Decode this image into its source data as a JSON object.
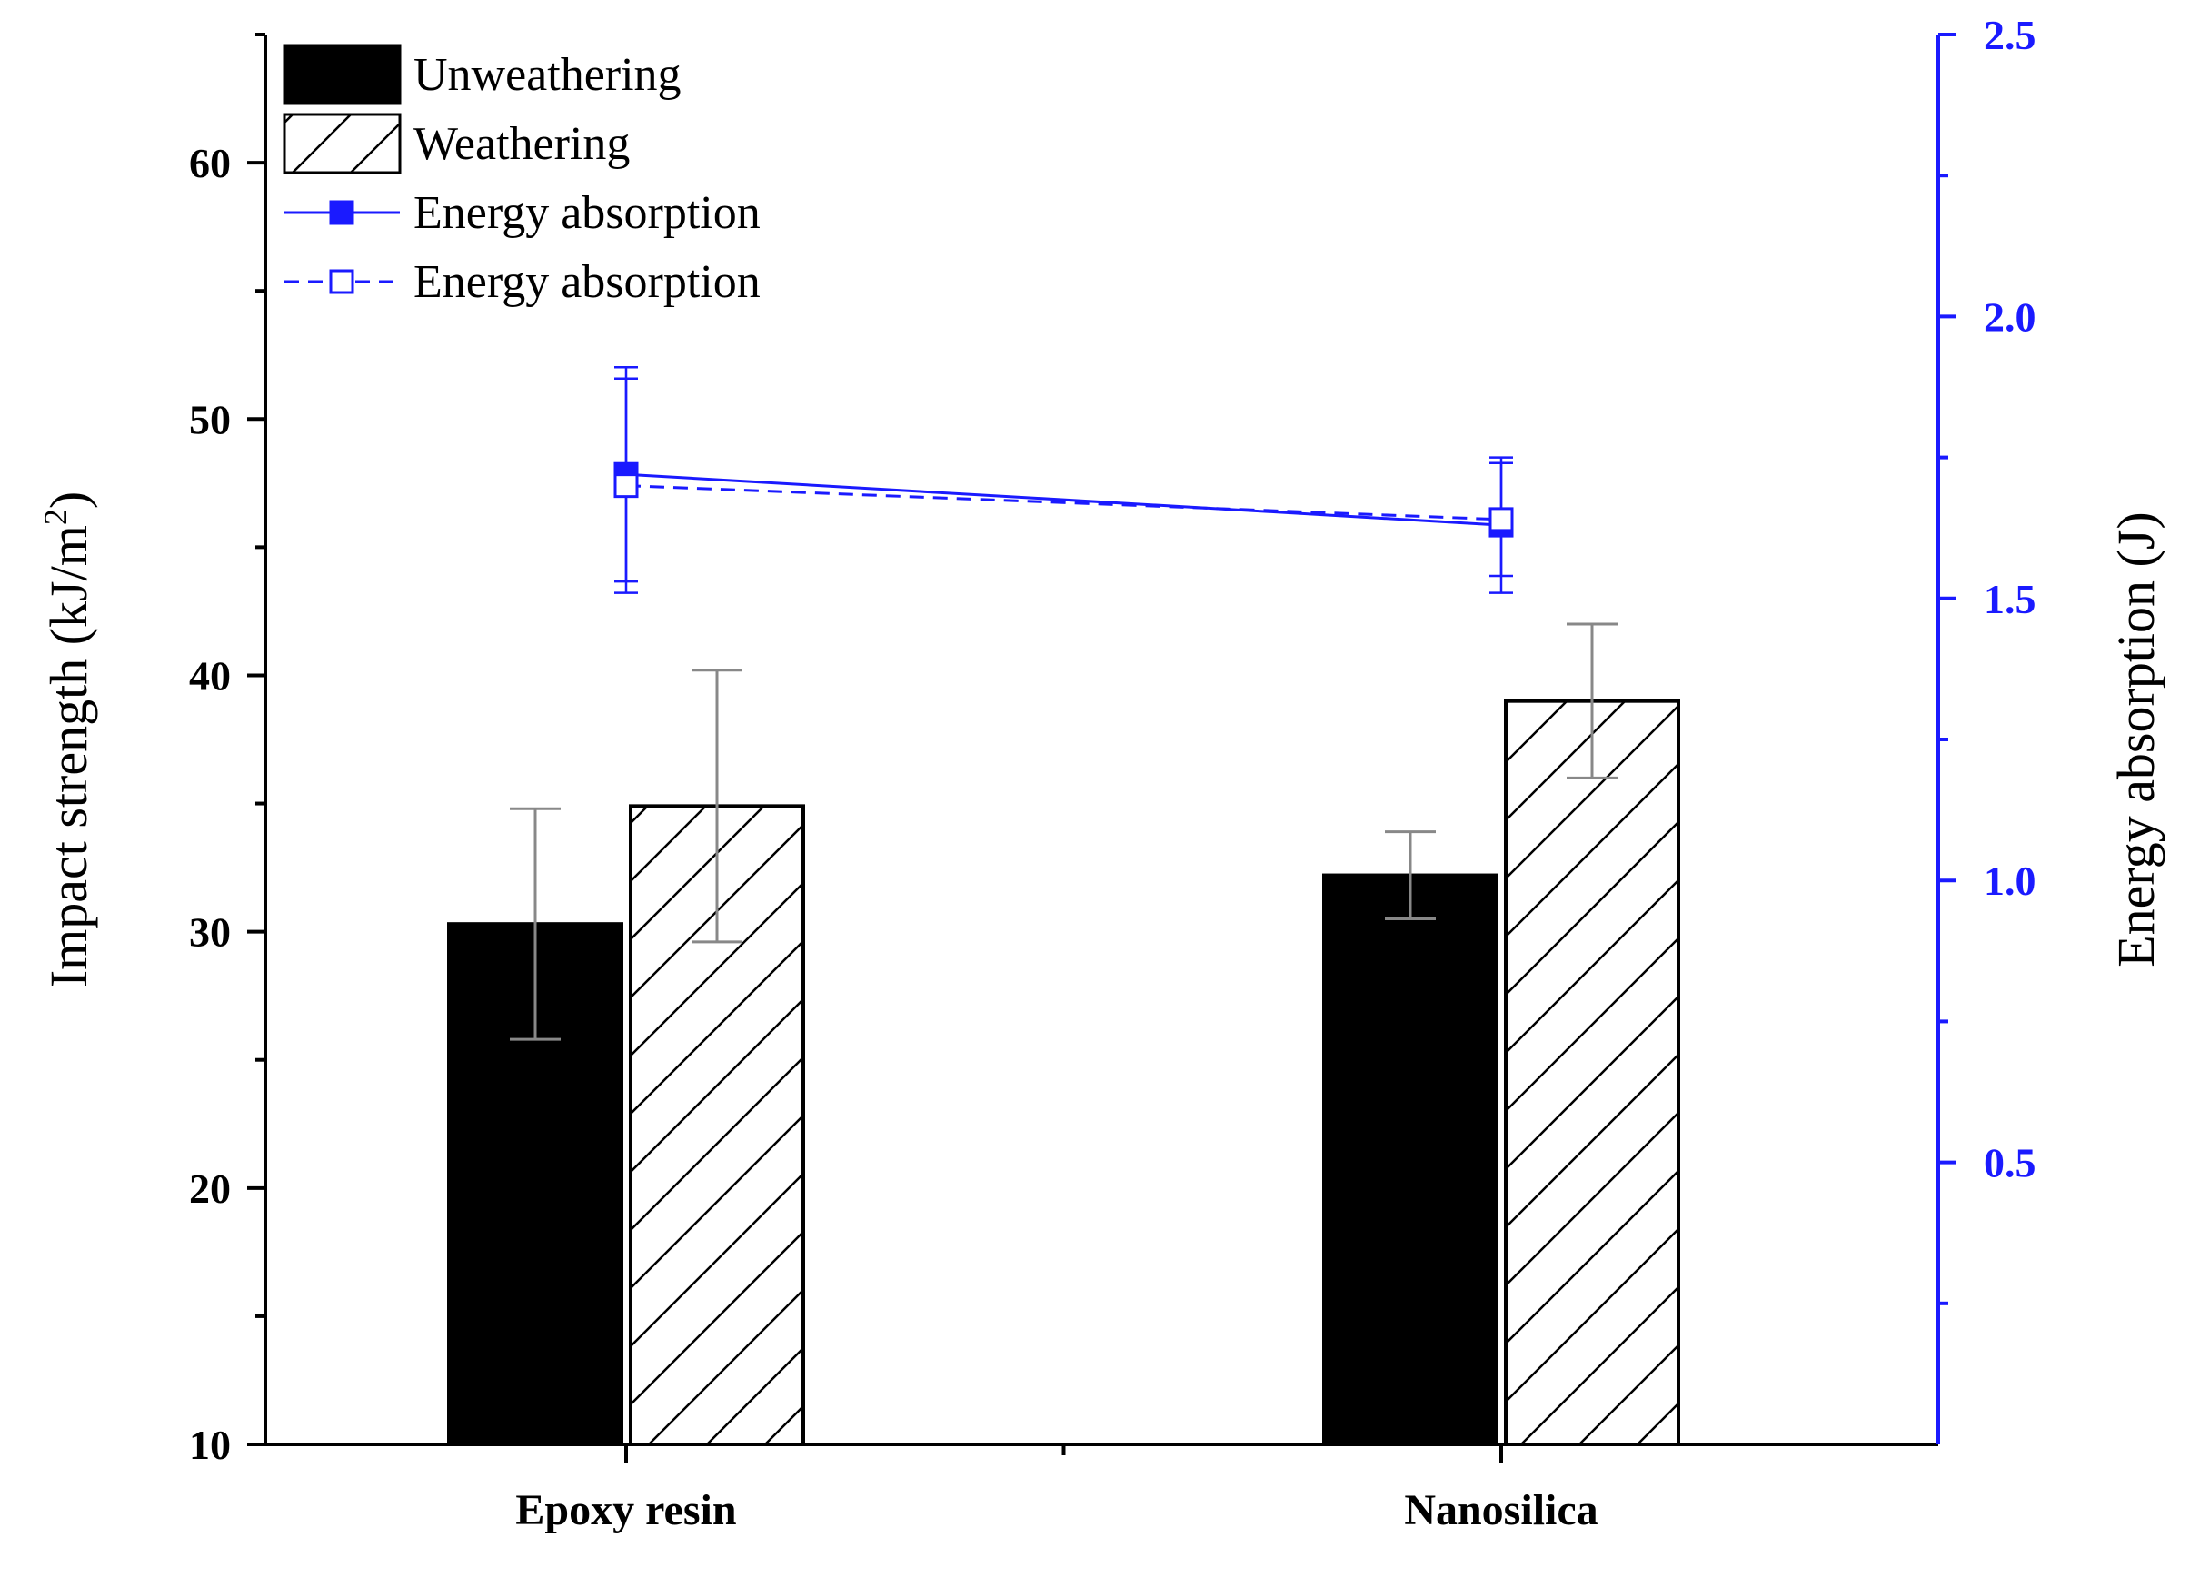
{
  "chart_data": {
    "type": "bar",
    "categories": [
      "Epoxy resin",
      "Nanosilica"
    ],
    "ylabel_left": "Impact strength (kJ/m",
    "ylabel_left_sup": "2",
    "ylabel_left_close": ")",
    "ylabel_right": "Energy absorption (J)",
    "ylim_left": [
      10,
      65
    ],
    "yticks_left": [
      10,
      20,
      30,
      40,
      50,
      60
    ],
    "ylim_right": [
      0,
      2.5
    ],
    "yticks_right": [
      0.5,
      1.0,
      1.5,
      2.0,
      2.5
    ],
    "yticks_right_labels": [
      "0.5",
      "1.0",
      "1.5",
      "2.0",
      "2.5"
    ],
    "bar_series": [
      {
        "name": "Unweathering",
        "pattern": "solid",
        "values": [
          30.3,
          32.2
        ],
        "errors": [
          4.5,
          1.7
        ]
      },
      {
        "name": "Weathering",
        "pattern": "hatch",
        "values": [
          34.9,
          39.0
        ],
        "errors": [
          5.3,
          3.0
        ]
      }
    ],
    "line_series": [
      {
        "name": "Energy absorption",
        "style": "solid-filled-square",
        "values": [
          1.72,
          1.63
        ],
        "errors": [
          0.19,
          0.12
        ]
      },
      {
        "name": "Energy absorption",
        "style": "dashed-open-square",
        "values": [
          1.7,
          1.64
        ],
        "errors": [
          0.19,
          0.1
        ]
      }
    ],
    "colors": {
      "bar_fill": "#000000",
      "line": "#1a1aff",
      "right_axis": "#1a1aff",
      "error_bar": "#888888"
    },
    "legend_position": "top-left"
  }
}
